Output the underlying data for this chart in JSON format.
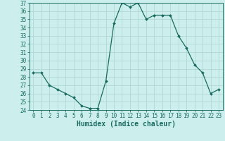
{
  "x": [
    0,
    1,
    2,
    3,
    4,
    5,
    6,
    7,
    8,
    9,
    10,
    11,
    12,
    13,
    14,
    15,
    16,
    17,
    18,
    19,
    20,
    21,
    22,
    23
  ],
  "y": [
    28.5,
    28.5,
    27.0,
    26.5,
    26.0,
    25.5,
    24.5,
    24.2,
    24.2,
    27.5,
    34.5,
    37.0,
    36.5,
    37.0,
    35.0,
    35.5,
    35.5,
    35.5,
    33.0,
    31.5,
    29.5,
    28.5,
    26.0,
    26.5
  ],
  "bg_color": "#cceeed",
  "line_color": "#1a6b5e",
  "marker_color": "#1a6b5e",
  "grid_color": "#aad4d0",
  "xlabel": "Humidex (Indice chaleur)",
  "ylim": [
    24,
    37
  ],
  "xlim_min": -0.5,
  "xlim_max": 23.5,
  "yticks": [
    24,
    25,
    26,
    27,
    28,
    29,
    30,
    31,
    32,
    33,
    34,
    35,
    36,
    37
  ],
  "xticks": [
    0,
    1,
    2,
    3,
    4,
    5,
    6,
    7,
    8,
    9,
    10,
    11,
    12,
    13,
    14,
    15,
    16,
    17,
    18,
    19,
    20,
    21,
    22,
    23
  ],
  "tick_fontsize": 5.5,
  "xlabel_fontsize": 7.0
}
